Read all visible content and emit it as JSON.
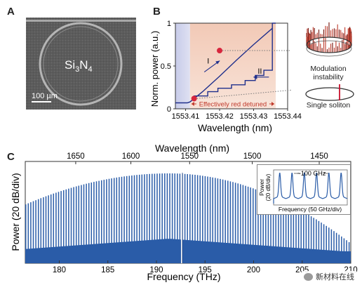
{
  "panels": {
    "a": {
      "letter": "A",
      "material_label": "Si3N4",
      "material_main": "Si",
      "material_sub1": "3",
      "material_n": "N",
      "material_sub2": "4",
      "scalebar_label": "100 µm"
    },
    "b": {
      "letter": "B",
      "ylabel": "Norm. power (a.u.)",
      "xlabel": "Wavelength (nm)",
      "region_label": "Effectively red detuned",
      "step_I": "I",
      "step_II": "II",
      "inset_top_label_1": "Modulation",
      "inset_top_label_2": "instability",
      "inset_bottom_label": "Single soliton"
    },
    "c": {
      "letter": "C",
      "top_xlabel": "Wavelength (nm)",
      "bottom_xlabel": "Frequency (THz)",
      "ylabel": "Power (20 dB/div)",
      "inset_spacing": "~100 GHz",
      "inset_ylabel_1": "Power",
      "inset_ylabel_2": "(20 dB/div)",
      "inset_xlabel": "Frequency (50 GHz/div)"
    }
  },
  "watermark": {
    "text": "新材料在线"
  },
  "chart_data": [
    {
      "type": "line",
      "panel": "B",
      "xlabel": "Wavelength (nm)",
      "ylabel": "Norm. power (a.u.)",
      "x_ticks": [
        "1553.41",
        "1553.42",
        "1553.43",
        "1553.44"
      ],
      "y_ticks": [
        "0",
        "0.5",
        "1"
      ],
      "xlim": [
        1553.407,
        1553.44
      ],
      "ylim": [
        0,
        1
      ],
      "series": [
        {
          "name": "I",
          "x": [
            1553.407,
            1553.4105,
            1553.4113,
            1553.415,
            1553.42,
            1553.425,
            1553.43,
            1553.4355
          ],
          "y": [
            0.07,
            0.07,
            0.08,
            0.2,
            0.38,
            0.57,
            0.75,
            0.94
          ]
        },
        {
          "name": "II",
          "x": [
            1553.4125,
            1553.4125,
            1553.4165,
            1553.4165,
            1553.4195,
            1553.4195,
            1553.4235,
            1553.4235,
            1553.4275,
            1553.4275,
            1553.4305,
            1553.4305,
            1553.433,
            1553.433,
            1553.4355,
            1553.4355,
            1553.4365
          ],
          "y": [
            0.12,
            0.15,
            0.15,
            0.2,
            0.2,
            0.24,
            0.24,
            0.28,
            0.28,
            0.33,
            0.33,
            0.39,
            0.39,
            0.45,
            0.45,
            1.0,
            1.0
          ]
        }
      ],
      "markers": [
        {
          "x": 1553.42,
          "y": 0.68
        },
        {
          "x": 1553.4125,
          "y": 0.12
        }
      ],
      "shaded_region": {
        "x_start": 1553.4113,
        "x_end": 1553.4365,
        "label": "Effectively red detuned"
      }
    },
    {
      "type": "line",
      "panel": "C",
      "xlabel": "Frequency (THz)",
      "x_ticks": [
        "180",
        "185",
        "190",
        "195",
        "200",
        "205",
        "210"
      ],
      "xlim": [
        176.5,
        210
      ],
      "top_xlabel": "Wavelength (nm)",
      "top_ticks": [
        "1650",
        "1600",
        "1550",
        "1500",
        "1450"
      ],
      "ylabel": "Power (20 dB/div)",
      "envelope_peak_thz": 191.3,
      "pump_line_thz": 192.6,
      "comb_spacing_ghz": 100
    }
  ]
}
